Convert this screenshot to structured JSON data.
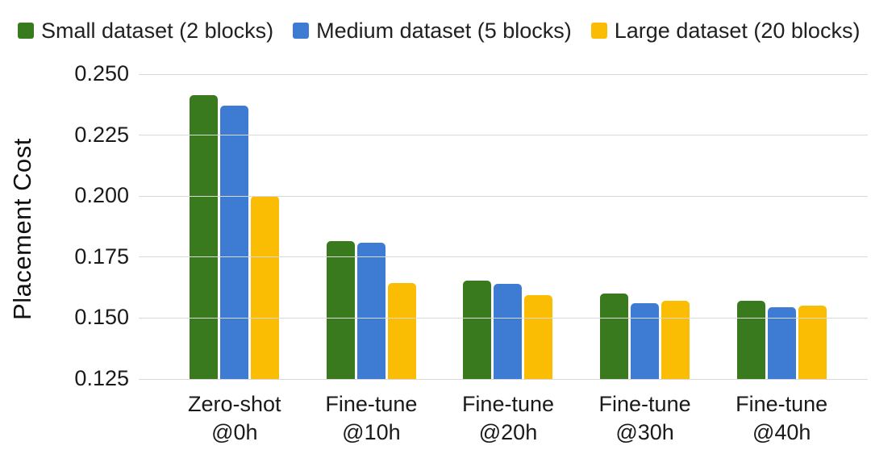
{
  "chart_data": {
    "type": "bar",
    "title": "",
    "ylabel": "Placement Cost",
    "xlabel": "",
    "grid": true,
    "legend_position": "top",
    "ylim": [
      0.125,
      0.25
    ],
    "y_ticks": [
      "0.250",
      "0.225",
      "0.200",
      "0.175",
      "0.150",
      "0.125"
    ],
    "categories": [
      [
        "Zero-shot",
        "@0h"
      ],
      [
        "Fine-tune",
        "@10h"
      ],
      [
        "Fine-tune",
        "@20h"
      ],
      [
        "Fine-tune",
        "@30h"
      ],
      [
        "Fine-tune",
        "@40h"
      ]
    ],
    "series": [
      {
        "name": "Small dataset (2 blocks)",
        "color": "#3a7a1e",
        "values": [
          0.2415,
          0.1815,
          0.1655,
          0.16,
          0.157
        ]
      },
      {
        "name": "Medium dataset (5 blocks)",
        "color": "#3e7bd3",
        "values": [
          0.237,
          0.181,
          0.164,
          0.156,
          0.1545
        ]
      },
      {
        "name": "Large dataset (20 blocks)",
        "color": "#fbbc04",
        "values": [
          0.2,
          0.1645,
          0.1595,
          0.157,
          0.155
        ]
      }
    ],
    "grid_color": "#d9d9d9",
    "text_color": "#212121",
    "background_color": "#ffffff"
  }
}
